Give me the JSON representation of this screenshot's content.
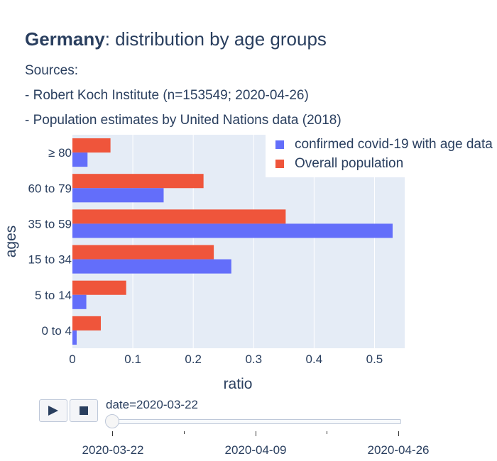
{
  "header": {
    "title_bold": "Germany",
    "title_rest": ": distribution by age groups",
    "sources": "Sources:",
    "source_rki": "- Robert Koch Institute (n=153549; 2020-04-26)",
    "source_un": "- Population estimates by United Nations data (2018)"
  },
  "colors": {
    "covid": "#636efa",
    "population": "#ef553b",
    "plot_bg": "#e5ecf6",
    "grid": "#ffffff",
    "text": "#2a3f5f"
  },
  "chart_data": {
    "type": "bar",
    "orientation": "horizontal",
    "categories": [
      "0 to 4",
      "5 to 14",
      "15 to 34",
      "35 to 59",
      "60 to 79",
      "≥ 80"
    ],
    "series": [
      {
        "name": "confirmed covid-19 with age data",
        "values": [
          0.007,
          0.023,
          0.263,
          0.53,
          0.151,
          0.025
        ]
      },
      {
        "name": "Overall population",
        "values": [
          0.047,
          0.089,
          0.234,
          0.353,
          0.217,
          0.063
        ]
      }
    ],
    "xlabel": "ratio",
    "ylabel": "ages",
    "xlim": [
      0,
      0.55
    ],
    "xticks": [
      0,
      0.1,
      0.2,
      0.3,
      0.4,
      0.5
    ],
    "grid": true,
    "legend_position": "top-right"
  },
  "controls": {
    "play_icon": "play-icon",
    "stop_icon": "stop-icon",
    "slider_label": "date=2020-03-22",
    "slider_value_fraction": 0,
    "slider_ticks": [
      "2020-03-22",
      "2020-04-09",
      "2020-04-26"
    ]
  }
}
